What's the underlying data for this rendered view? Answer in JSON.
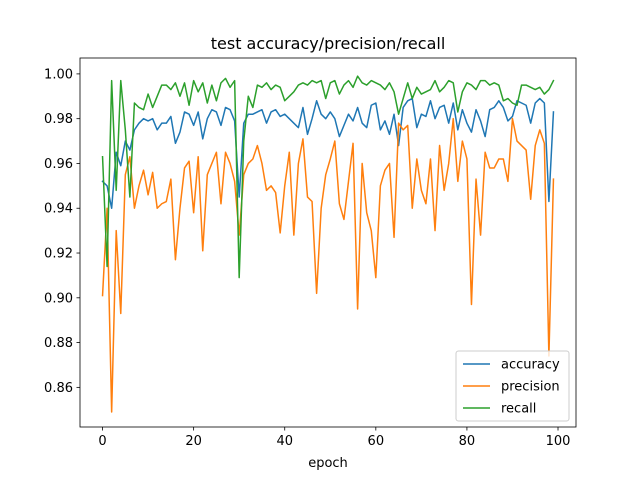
{
  "chart_data": {
    "type": "line",
    "title": "test accuracy/precision/recall",
    "xlabel": "epoch",
    "ylabel": "",
    "xlim": [
      -4.95,
      103.95
    ],
    "ylim": [
      0.8423,
      1.0071
    ],
    "xticks": [
      0,
      20,
      40,
      60,
      80,
      100
    ],
    "xtick_labels": [
      "0",
      "20",
      "40",
      "60",
      "80",
      "100"
    ],
    "yticks": [
      0.86,
      0.88,
      0.9,
      0.92,
      0.94,
      0.96,
      0.98,
      1.0
    ],
    "ytick_labels": [
      "0.86",
      "0.88",
      "0.90",
      "0.92",
      "0.94",
      "0.96",
      "0.98",
      "1.00"
    ],
    "grid": false,
    "legend_position": "lower-right",
    "x": [
      0,
      1,
      2,
      3,
      4,
      5,
      6,
      7,
      8,
      9,
      10,
      11,
      12,
      13,
      14,
      15,
      16,
      17,
      18,
      19,
      20,
      21,
      22,
      23,
      24,
      25,
      26,
      27,
      28,
      29,
      30,
      31,
      32,
      33,
      34,
      35,
      36,
      37,
      38,
      39,
      40,
      41,
      42,
      43,
      44,
      45,
      46,
      47,
      48,
      49,
      50,
      51,
      52,
      53,
      54,
      55,
      56,
      57,
      58,
      59,
      60,
      61,
      62,
      63,
      64,
      65,
      66,
      67,
      68,
      69,
      70,
      71,
      72,
      73,
      74,
      75,
      76,
      77,
      78,
      79,
      80,
      81,
      82,
      83,
      84,
      85,
      86,
      87,
      88,
      89,
      90,
      91,
      92,
      93,
      94,
      95,
      96,
      97,
      98,
      99
    ],
    "series": [
      {
        "name": "accuracy",
        "color": "#1f77b4",
        "values": [
          0.952,
          0.95,
          0.94,
          0.965,
          0.959,
          0.97,
          0.966,
          0.975,
          0.978,
          0.98,
          0.979,
          0.98,
          0.975,
          0.978,
          0.978,
          0.981,
          0.969,
          0.974,
          0.983,
          0.982,
          0.977,
          0.983,
          0.971,
          0.98,
          0.984,
          0.983,
          0.977,
          0.985,
          0.984,
          0.979,
          0.945,
          0.978,
          0.982,
          0.982,
          0.983,
          0.984,
          0.978,
          0.983,
          0.984,
          0.981,
          0.982,
          0.98,
          0.978,
          0.976,
          0.985,
          0.973,
          0.98,
          0.988,
          0.982,
          0.98,
          0.983,
          0.98,
          0.972,
          0.977,
          0.982,
          0.979,
          0.985,
          0.978,
          0.976,
          0.986,
          0.987,
          0.975,
          0.979,
          0.973,
          0.982,
          0.968,
          0.985,
          0.988,
          0.989,
          0.976,
          0.982,
          0.981,
          0.988,
          0.98,
          0.985,
          0.986,
          0.978,
          0.987,
          0.975,
          0.984,
          0.978,
          0.974,
          0.984,
          0.979,
          0.972,
          0.984,
          0.985,
          0.988,
          0.985,
          0.979,
          0.981,
          0.988,
          0.987,
          0.986,
          0.978,
          0.987,
          0.989,
          0.987,
          0.943,
          0.983
        ]
      },
      {
        "name": "precision",
        "color": "#ff7f0e",
        "values": [
          0.901,
          0.94,
          0.849,
          0.93,
          0.893,
          0.955,
          0.963,
          0.94,
          0.95,
          0.957,
          0.946,
          0.956,
          0.94,
          0.942,
          0.943,
          0.953,
          0.917,
          0.94,
          0.958,
          0.961,
          0.938,
          0.963,
          0.921,
          0.955,
          0.96,
          0.965,
          0.942,
          0.965,
          0.96,
          0.952,
          0.928,
          0.955,
          0.96,
          0.962,
          0.968,
          0.96,
          0.948,
          0.95,
          0.947,
          0.929,
          0.95,
          0.965,
          0.928,
          0.96,
          0.971,
          0.945,
          0.943,
          0.902,
          0.94,
          0.955,
          0.962,
          0.97,
          0.942,
          0.935,
          0.952,
          0.969,
          0.895,
          0.96,
          0.938,
          0.93,
          0.909,
          0.95,
          0.957,
          0.96,
          0.927,
          0.978,
          0.975,
          0.977,
          0.94,
          0.962,
          0.948,
          0.942,
          0.962,
          0.93,
          0.968,
          0.948,
          0.96,
          0.98,
          0.952,
          0.97,
          0.962,
          0.897,
          0.953,
          0.928,
          0.965,
          0.958,
          0.958,
          0.962,
          0.962,
          0.952,
          0.98,
          0.97,
          0.968,
          0.966,
          0.944,
          0.968,
          0.975,
          0.969,
          0.874,
          0.953
        ]
      },
      {
        "name": "recall",
        "color": "#2ca02c",
        "values": [
          0.963,
          0.914,
          0.997,
          0.948,
          0.997,
          0.975,
          0.945,
          0.987,
          0.985,
          0.984,
          0.991,
          0.985,
          0.99,
          0.995,
          0.995,
          0.993,
          0.996,
          0.99,
          0.996,
          0.986,
          0.997,
          0.992,
          0.996,
          0.987,
          0.995,
          0.988,
          0.996,
          0.998,
          0.994,
          0.997,
          0.909,
          0.97,
          0.99,
          0.985,
          0.995,
          0.994,
          0.996,
          0.993,
          0.995,
          0.994,
          0.988,
          0.99,
          0.992,
          0.995,
          0.996,
          0.995,
          0.997,
          0.996,
          0.997,
          0.989,
          0.996,
          0.997,
          0.991,
          0.995,
          0.997,
          0.994,
          0.999,
          0.996,
          0.995,
          0.997,
          0.996,
          0.995,
          0.993,
          0.996,
          0.992,
          0.982,
          0.989,
          0.996,
          0.989,
          0.994,
          0.991,
          0.992,
          0.993,
          0.997,
          0.992,
          0.994,
          0.997,
          0.996,
          0.983,
          0.992,
          0.996,
          0.995,
          0.993,
          0.997,
          0.997,
          0.995,
          0.996,
          0.995,
          0.988,
          0.989,
          0.987,
          0.986,
          0.995,
          0.995,
          0.994,
          0.993,
          0.994,
          0.991,
          0.993,
          0.997
        ]
      }
    ]
  }
}
